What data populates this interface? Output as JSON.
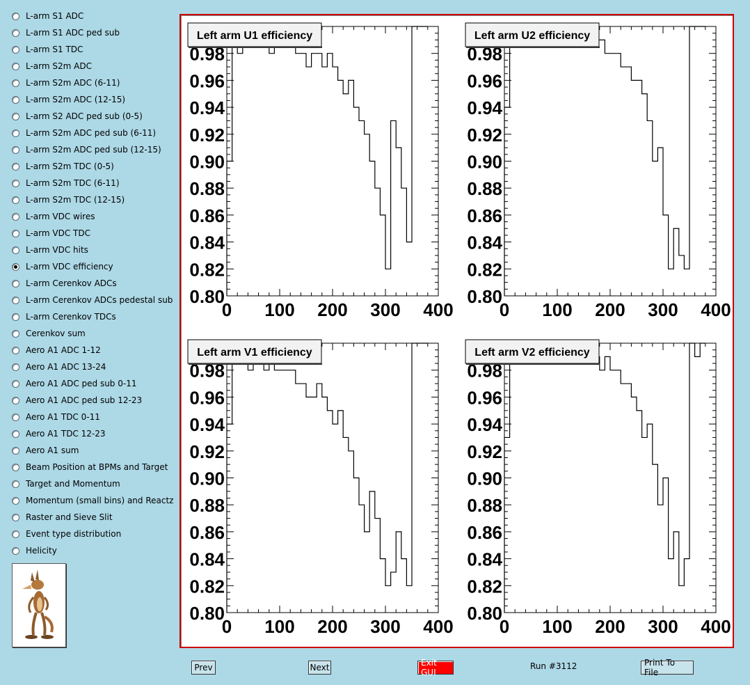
{
  "sidebar": {
    "items": [
      {
        "label": "L-arm S1 ADC",
        "checked": false
      },
      {
        "label": "L-arm S1 ADC ped sub",
        "checked": false
      },
      {
        "label": "L-arm S1 TDC",
        "checked": false
      },
      {
        "label": "L-arm S2m ADC",
        "checked": false
      },
      {
        "label": "L-arm S2m ADC (6-11)",
        "checked": false
      },
      {
        "label": "L-arm S2m ADC (12-15)",
        "checked": false
      },
      {
        "label": "L-arm S2 ADC ped sub (0-5)",
        "checked": false
      },
      {
        "label": "L-arm S2m ADC ped sub (6-11)",
        "checked": false
      },
      {
        "label": "L-arm S2m ADC ped sub (12-15)",
        "checked": false
      },
      {
        "label": "L-arm S2m TDC (0-5)",
        "checked": false
      },
      {
        "label": "L-arm S2m TDC (6-11)",
        "checked": false
      },
      {
        "label": "L-arm S2m TDC (12-15)",
        "checked": false
      },
      {
        "label": "L-arm VDC wires",
        "checked": false
      },
      {
        "label": "L-arm VDC TDC",
        "checked": false
      },
      {
        "label": "L-arm VDC hits",
        "checked": false
      },
      {
        "label": "L-arm VDC efficiency",
        "checked": true
      },
      {
        "label": "L-arm Cerenkov ADCs",
        "checked": false
      },
      {
        "label": "L-arm Cerenkov ADCs pedestal sub",
        "checked": false
      },
      {
        "label": "L-arm Cerenkov TDCs",
        "checked": false
      },
      {
        "label": "Cerenkov sum",
        "checked": false
      },
      {
        "label": "Aero A1 ADC 1-12",
        "checked": false
      },
      {
        "label": "Aero A1 ADC 13-24",
        "checked": false
      },
      {
        "label": "Aero A1 ADC ped sub 0-11",
        "checked": false
      },
      {
        "label": "Aero A1 ADC ped sub 12-23",
        "checked": false
      },
      {
        "label": "Aero A1 TDC 0-11",
        "checked": false
      },
      {
        "label": "Aero A1 TDC 12-23",
        "checked": false
      },
      {
        "label": "Aero A1 sum",
        "checked": false
      },
      {
        "label": "Beam Position at BPMs and Target",
        "checked": false
      },
      {
        "label": "Target and Momentum",
        "checked": false
      },
      {
        "label": "Momentum (small bins) and Reactz",
        "checked": false
      },
      {
        "label": "Raster and Sieve Slit",
        "checked": false
      },
      {
        "label": "Event type distribution",
        "checked": false
      },
      {
        "label": "Helicity",
        "checked": false
      }
    ],
    "logo_icon": "coyote-logo-icon"
  },
  "toolbar": {
    "prev_label": "Prev",
    "next_label": "Next",
    "exit_label": "Exit GUI",
    "run_label": "Run #3112",
    "print_label": "Print To File"
  },
  "colors": {
    "background": "#add8e6",
    "canvas_border": "#cc0000",
    "exit_button": "#ff0000"
  },
  "chart_data": [
    {
      "type": "line",
      "title": "Left arm U1 efficiency",
      "xlim": [
        0,
        400
      ],
      "ylim": [
        0.8,
        1.0
      ],
      "xticks": [
        "0",
        "100",
        "200",
        "300",
        "400"
      ],
      "yticks": [
        "0.80",
        "0.82",
        "0.84",
        "0.86",
        "0.88",
        "0.90",
        "0.92",
        "0.94",
        "0.96",
        "0.98"
      ],
      "series": [
        {
          "x": [
            0,
            10,
            20,
            30,
            40,
            50,
            60,
            70,
            80,
            90,
            100,
            110,
            120,
            130,
            140,
            150,
            160,
            170,
            180,
            190,
            200,
            210,
            220,
            230,
            240,
            250,
            260,
            270,
            280,
            290,
            300,
            310,
            320,
            330,
            340,
            350,
            360,
            370
          ],
          "y": [
            0.9,
            1.0,
            0.98,
            0.99,
            0.99,
            0.99,
            0.99,
            0.99,
            0.98,
            0.99,
            0.99,
            0.99,
            0.99,
            0.98,
            0.98,
            0.97,
            0.98,
            0.98,
            0.97,
            0.98,
            0.97,
            0.96,
            0.95,
            0.96,
            0.94,
            0.93,
            0.92,
            0.9,
            0.88,
            0.86,
            0.82,
            0.93,
            0.91,
            0.88,
            0.84,
            1.0,
            1.0,
            1.0
          ]
        }
      ]
    },
    {
      "type": "line",
      "title": "Left arm U2 efficiency",
      "xlim": [
        0,
        400
      ],
      "ylim": [
        0.8,
        1.0
      ],
      "xticks": [
        "0",
        "100",
        "200",
        "300",
        "400"
      ],
      "yticks": [
        "0.80",
        "0.82",
        "0.84",
        "0.86",
        "0.88",
        "0.90",
        "0.92",
        "0.94",
        "0.96",
        "0.98"
      ],
      "series": [
        {
          "x": [
            0,
            10,
            20,
            30,
            40,
            50,
            60,
            70,
            80,
            90,
            100,
            110,
            120,
            130,
            140,
            150,
            160,
            170,
            180,
            190,
            200,
            210,
            220,
            230,
            240,
            250,
            260,
            270,
            280,
            290,
            300,
            310,
            320,
            330,
            340,
            350,
            360,
            370
          ],
          "y": [
            0.94,
            1.0,
            0.99,
            0.99,
            0.99,
            0.99,
            0.99,
            0.99,
            0.99,
            0.99,
            0.99,
            0.99,
            0.99,
            0.99,
            0.99,
            0.99,
            0.99,
            0.99,
            0.99,
            0.98,
            0.98,
            0.98,
            0.97,
            0.97,
            0.96,
            0.96,
            0.95,
            0.93,
            0.9,
            0.91,
            0.86,
            0.82,
            0.85,
            0.83,
            0.82,
            1.0,
            1.0,
            1.0
          ]
        }
      ]
    },
    {
      "type": "line",
      "title": "Left arm V1 efficiency",
      "xlim": [
        0,
        400
      ],
      "ylim": [
        0.8,
        1.0
      ],
      "xticks": [
        "0",
        "100",
        "200",
        "300",
        "400"
      ],
      "yticks": [
        "0.80",
        "0.82",
        "0.84",
        "0.86",
        "0.88",
        "0.90",
        "0.92",
        "0.94",
        "0.96",
        "0.98"
      ],
      "series": [
        {
          "x": [
            0,
            10,
            20,
            30,
            40,
            50,
            60,
            70,
            80,
            90,
            100,
            110,
            120,
            130,
            140,
            150,
            160,
            170,
            180,
            190,
            200,
            210,
            220,
            230,
            240,
            250,
            260,
            270,
            280,
            290,
            300,
            310,
            320,
            330,
            340,
            350,
            360,
            370
          ],
          "y": [
            0.94,
            1.0,
            0.99,
            0.99,
            0.98,
            0.99,
            0.99,
            0.98,
            0.99,
            0.98,
            0.98,
            0.98,
            0.98,
            0.97,
            0.97,
            0.96,
            0.96,
            0.97,
            0.96,
            0.95,
            0.94,
            0.95,
            0.93,
            0.92,
            0.9,
            0.88,
            0.86,
            0.89,
            0.87,
            0.84,
            0.82,
            0.83,
            0.86,
            0.84,
            0.82,
            1.0,
            1.0,
            1.0
          ]
        }
      ]
    },
    {
      "type": "line",
      "title": "Left arm V2 efficiency",
      "xlim": [
        0,
        400
      ],
      "ylim": [
        0.8,
        1.0
      ],
      "xticks": [
        "0",
        "100",
        "200",
        "300",
        "400"
      ],
      "yticks": [
        "0.80",
        "0.82",
        "0.84",
        "0.86",
        "0.88",
        "0.90",
        "0.92",
        "0.94",
        "0.96",
        "0.98"
      ],
      "series": [
        {
          "x": [
            0,
            10,
            20,
            30,
            40,
            50,
            60,
            70,
            80,
            90,
            100,
            110,
            120,
            130,
            140,
            150,
            160,
            170,
            180,
            190,
            200,
            210,
            220,
            230,
            240,
            250,
            260,
            270,
            280,
            290,
            300,
            310,
            320,
            330,
            340,
            350,
            360,
            370
          ],
          "y": [
            0.93,
            1.0,
            0.99,
            0.99,
            0.99,
            0.99,
            0.99,
            0.99,
            0.99,
            0.99,
            0.99,
            0.99,
            0.99,
            0.99,
            0.99,
            0.99,
            0.99,
            0.99,
            0.98,
            0.99,
            0.98,
            0.98,
            0.97,
            0.97,
            0.96,
            0.95,
            0.93,
            0.94,
            0.91,
            0.88,
            0.9,
            0.84,
            0.86,
            0.82,
            0.84,
            1.0,
            0.99,
            1.0
          ]
        }
      ]
    }
  ]
}
